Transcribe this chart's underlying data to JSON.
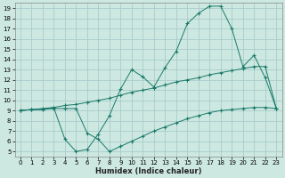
{
  "xlabel": "Humidex (Indice chaleur)",
  "bg_color": "#cce8e0",
  "grid_color": "#aacccc",
  "line_color": "#1a7a6a",
  "xlim": [
    -0.5,
    23.5
  ],
  "ylim": [
    4.5,
    19.5
  ],
  "xticks": [
    0,
    1,
    2,
    3,
    4,
    5,
    6,
    7,
    8,
    9,
    10,
    11,
    12,
    13,
    14,
    15,
    16,
    17,
    18,
    19,
    20,
    21,
    22,
    23
  ],
  "yticks": [
    5,
    6,
    7,
    8,
    9,
    10,
    11,
    12,
    13,
    14,
    15,
    16,
    17,
    18,
    19
  ],
  "curve1_x": [
    0,
    1,
    2,
    3,
    4,
    5,
    6,
    7,
    8,
    9,
    10,
    11,
    12,
    13,
    14,
    15,
    16,
    17,
    18,
    19,
    20,
    21,
    22,
    23
  ],
  "curve1_y": [
    9.0,
    9.1,
    9.1,
    9.3,
    6.2,
    5.0,
    5.2,
    6.7,
    8.5,
    11.1,
    13.0,
    12.3,
    11.3,
    13.2,
    14.8,
    17.5,
    18.5,
    19.2,
    19.2,
    17.0,
    13.3,
    14.4,
    12.2,
    9.2
  ],
  "curve2_x": [
    0,
    1,
    2,
    3,
    4,
    5,
    6,
    7,
    8,
    9,
    10,
    11,
    12,
    13,
    14,
    15,
    16,
    17,
    18,
    19,
    20,
    21,
    22,
    23
  ],
  "curve2_y": [
    9.0,
    9.1,
    9.2,
    9.3,
    9.5,
    9.6,
    9.8,
    10.0,
    10.2,
    10.5,
    10.8,
    11.0,
    11.2,
    11.5,
    11.8,
    12.0,
    12.2,
    12.5,
    12.7,
    12.9,
    13.1,
    13.3,
    13.3,
    9.2
  ],
  "curve3_x": [
    0,
    1,
    2,
    3,
    4,
    5,
    6,
    7,
    8,
    9,
    10,
    11,
    12,
    13,
    14,
    15,
    16,
    17,
    18,
    19,
    20,
    21,
    22,
    23
  ],
  "curve3_y": [
    9.0,
    9.1,
    9.1,
    9.2,
    9.2,
    9.2,
    6.8,
    6.2,
    5.0,
    5.5,
    6.0,
    6.5,
    7.0,
    7.4,
    7.8,
    8.2,
    8.5,
    8.8,
    9.0,
    9.1,
    9.2,
    9.3,
    9.3,
    9.2
  ]
}
